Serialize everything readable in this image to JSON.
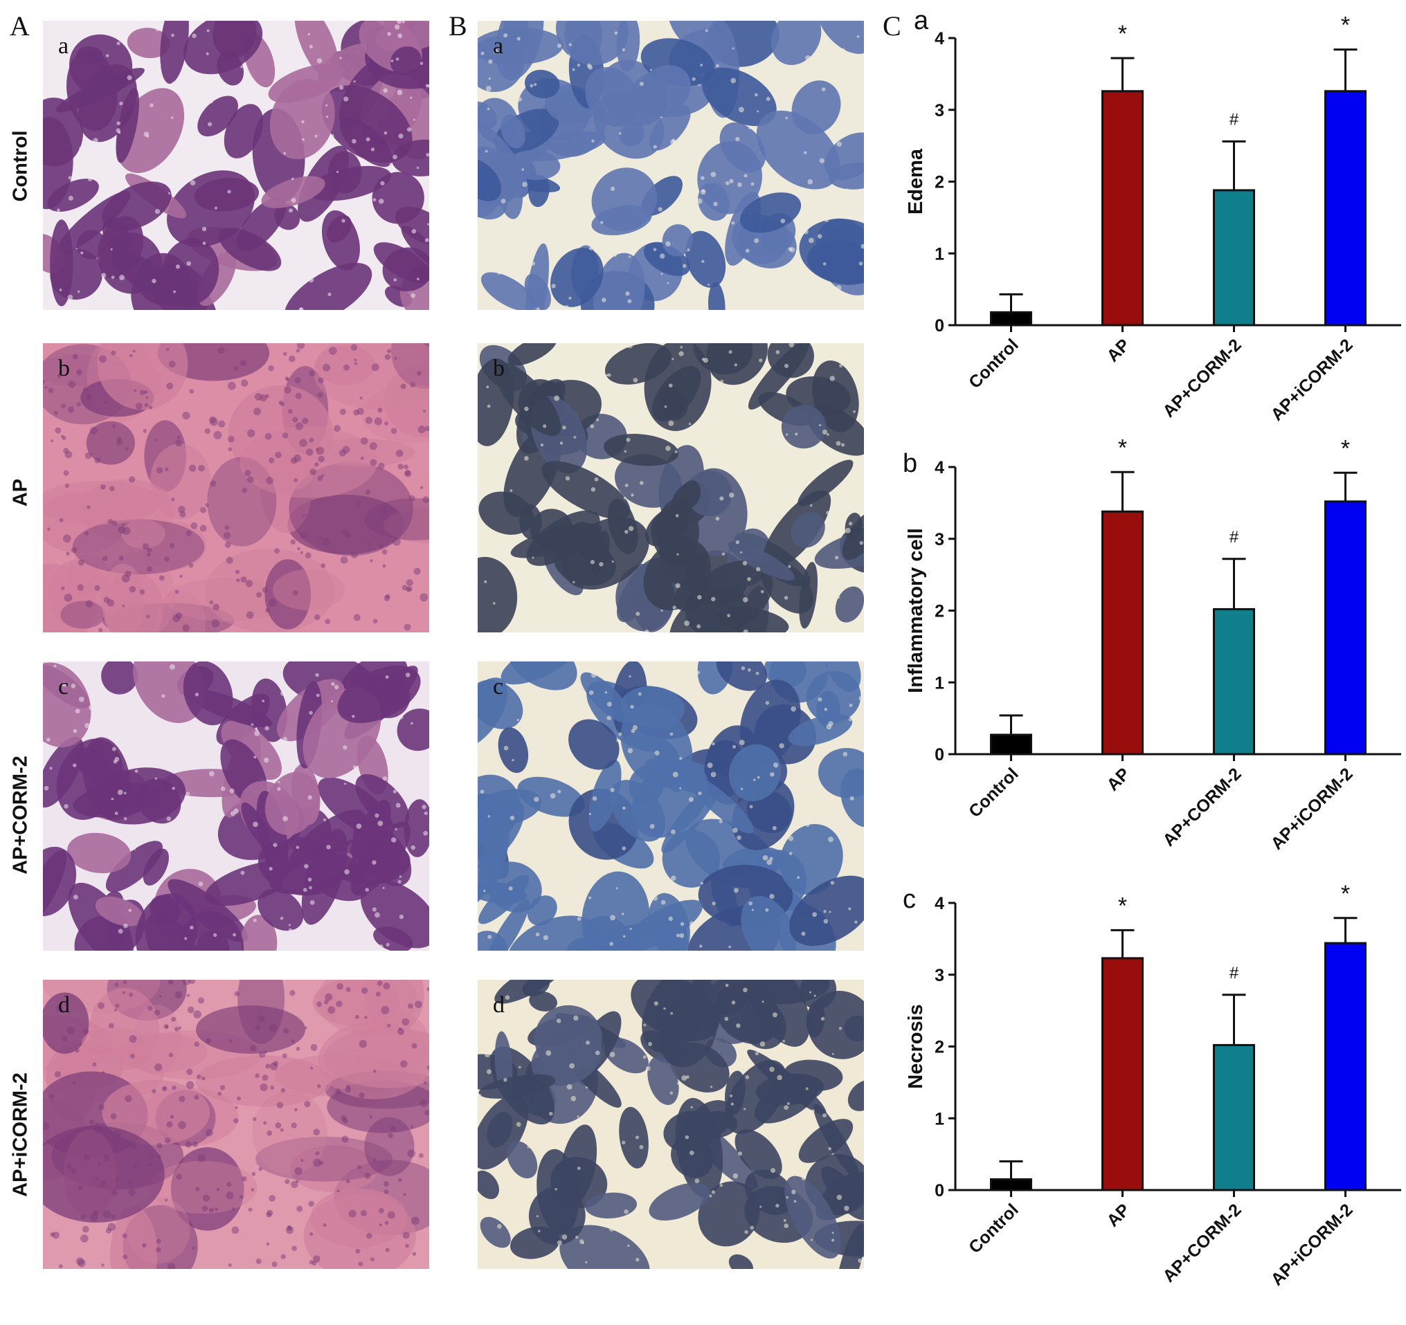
{
  "figure": {
    "panel_labels": [
      "A",
      "B",
      "C"
    ],
    "row_labels": [
      "Control",
      "AP",
      "AP+CORM-2",
      "AP+iCORM-2"
    ],
    "sub_labels": [
      "a",
      "b",
      "c",
      "d"
    ]
  },
  "micrographs": [
    {
      "panel": "A",
      "stain": "HE",
      "tag": "a",
      "look": "lobular",
      "colors": [
        "#f1eaf0",
        "#6a3478",
        "#a86a9c"
      ]
    },
    {
      "panel": "A",
      "stain": "HE",
      "tag": "b",
      "look": "damaged",
      "colors": [
        "#dc8ea6",
        "#7e3d78",
        "#cf7f9c"
      ]
    },
    {
      "panel": "A",
      "stain": "HE",
      "tag": "c",
      "look": "lobular",
      "colors": [
        "#eee5ee",
        "#6b347a",
        "#a86a9c"
      ]
    },
    {
      "panel": "A",
      "stain": "HE",
      "tag": "d",
      "look": "damaged",
      "colors": [
        "#e09aae",
        "#7c3c78",
        "#cf7f9c"
      ]
    },
    {
      "panel": "B",
      "stain": "IHC",
      "tag": "a",
      "look": "lobular",
      "colors": [
        "#efebdc",
        "#5e76b0",
        "#3e5a9a"
      ]
    },
    {
      "panel": "B",
      "stain": "IHC",
      "tag": "b",
      "look": "lobular",
      "colors": [
        "#f0ecdc",
        "#3b4258",
        "#505a7c"
      ]
    },
    {
      "panel": "B",
      "stain": "IHC",
      "tag": "c",
      "look": "lobular",
      "colors": [
        "#eee9d8",
        "#5070ab",
        "#3a4f88"
      ]
    },
    {
      "panel": "B",
      "stain": "IHC",
      "tag": "d",
      "look": "lobular",
      "colors": [
        "#efe9d6",
        "#3c4562",
        "#525c7e"
      ]
    }
  ],
  "chart_data": [
    {
      "type": "bar",
      "subpanel": "a",
      "ylabel": "Edema",
      "categories": [
        "Control",
        "AP",
        "AP+CORM-2",
        "AP+iCORM-2"
      ],
      "values": [
        0.18,
        3.26,
        1.88,
        3.26
      ],
      "errors": [
        0.25,
        0.46,
        0.68,
        0.58
      ],
      "annotations": [
        "",
        "*",
        "#",
        "*"
      ],
      "colors": [
        "#000000",
        "#9a0d0d",
        "#0f7f8e",
        "#0000f2"
      ],
      "ylim": [
        0,
        4
      ],
      "yticks": [
        "0",
        "1",
        "2",
        "3",
        "4"
      ],
      "grid": false
    },
    {
      "type": "bar",
      "subpanel": "b",
      "ylabel": "Inflammatory cell",
      "categories": [
        "Control",
        "AP",
        "AP+CORM-2",
        "AP+iCORM-2"
      ],
      "values": [
        0.27,
        3.38,
        2.02,
        3.52
      ],
      "errors": [
        0.27,
        0.55,
        0.7,
        0.4
      ],
      "annotations": [
        "",
        "*",
        "#",
        "*"
      ],
      "colors": [
        "#000000",
        "#9a0d0d",
        "#0f7f8e",
        "#0000f2"
      ],
      "ylim": [
        0,
        4
      ],
      "yticks": [
        "0",
        "1",
        "2",
        "3",
        "4"
      ],
      "grid": false
    },
    {
      "type": "bar",
      "subpanel": "c",
      "ylabel": "Necrosis",
      "categories": [
        "Control",
        "AP",
        "AP+CORM-2",
        "AP+iCORM-2"
      ],
      "values": [
        0.15,
        3.23,
        2.02,
        3.44
      ],
      "errors": [
        0.25,
        0.39,
        0.7,
        0.35
      ],
      "annotations": [
        "",
        "*",
        "#",
        "*"
      ],
      "colors": [
        "#000000",
        "#9a0d0d",
        "#0f7f8e",
        "#0000f2"
      ],
      "ylim": [
        0,
        4
      ],
      "yticks": [
        "0",
        "1",
        "2",
        "3",
        "4"
      ],
      "grid": false
    }
  ]
}
